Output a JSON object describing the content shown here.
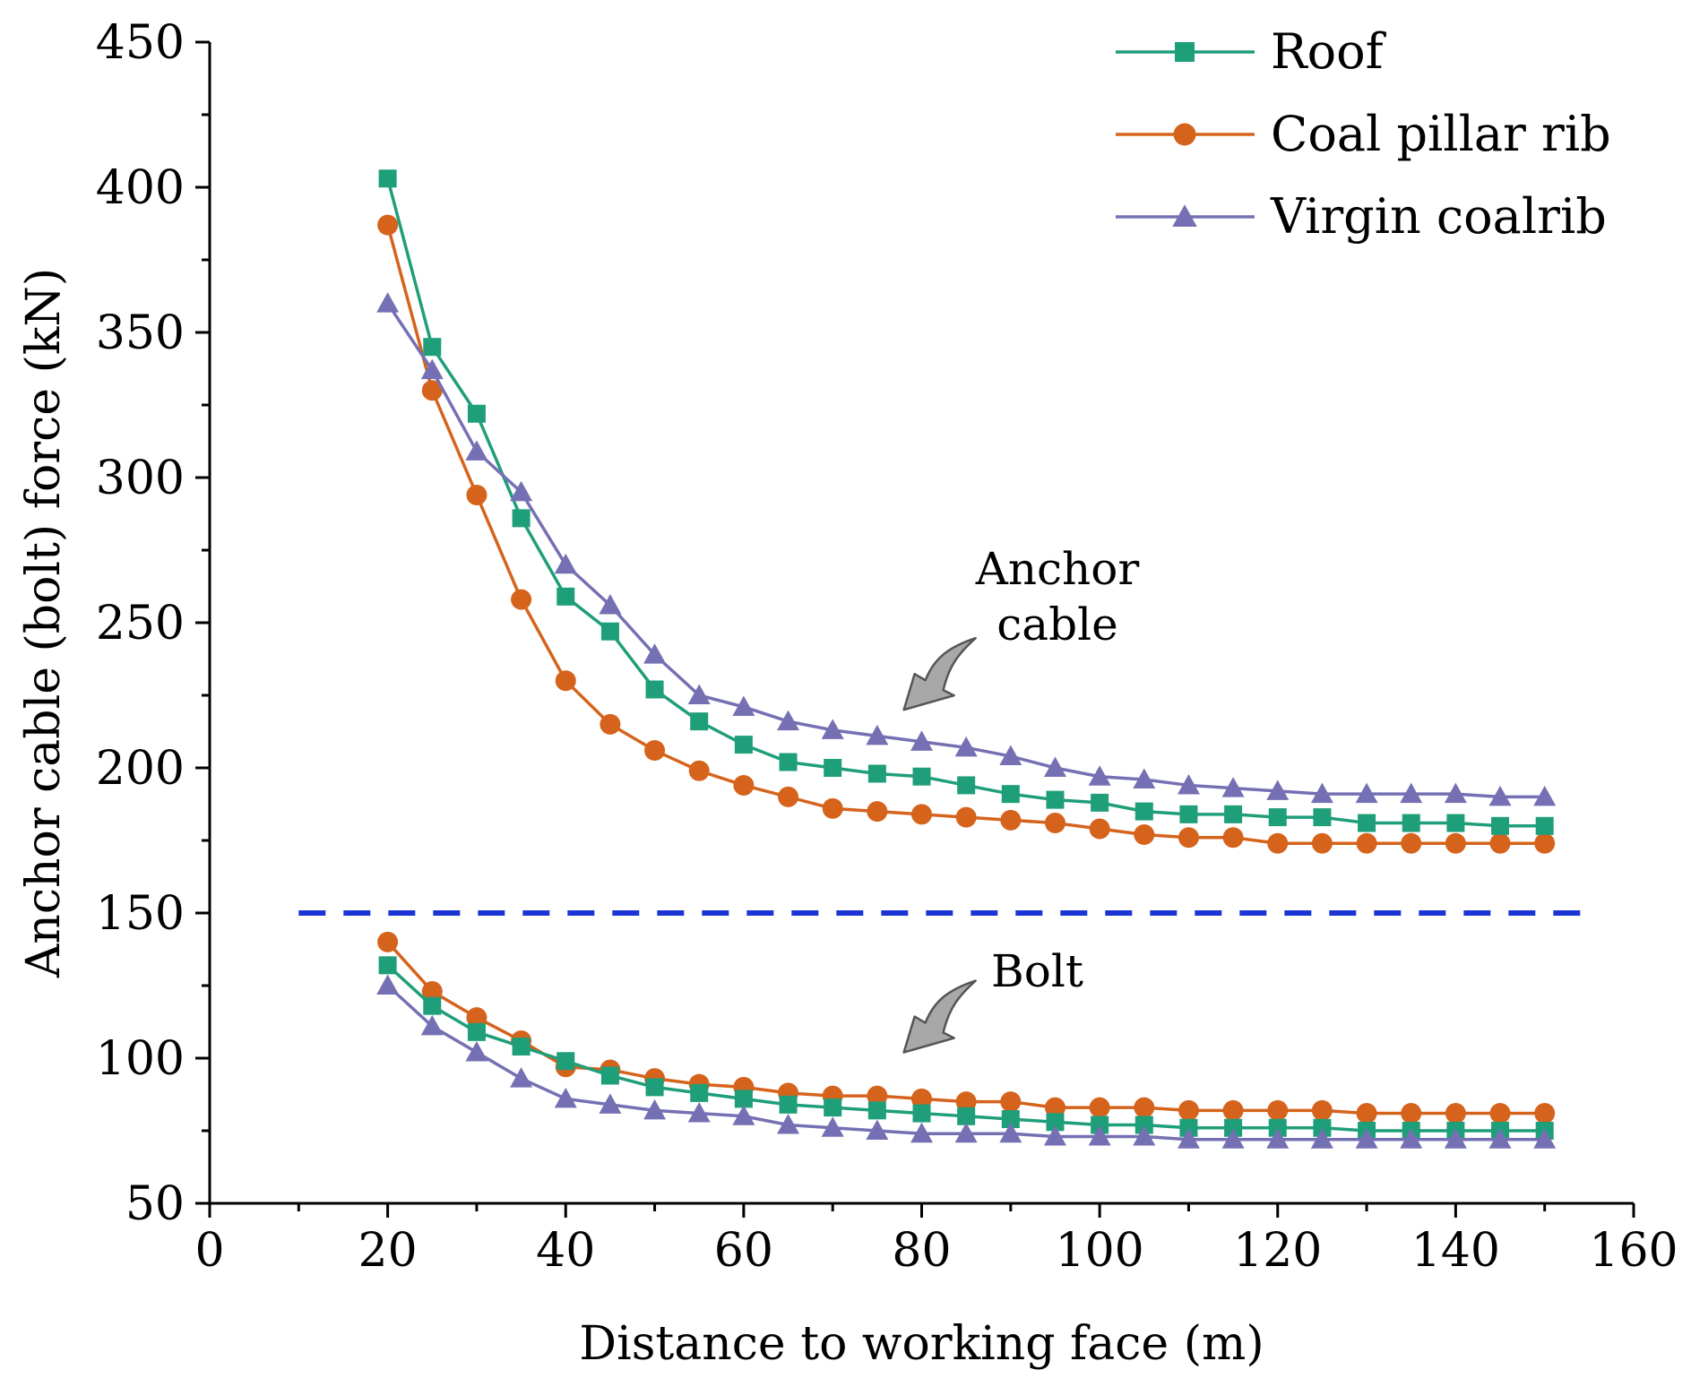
{
  "chart_data": {
    "type": "line",
    "title": "",
    "xlabel": "Distance to working face (m)",
    "ylabel": "Anchor cable (bolt) force (kN)",
    "xlim": [
      0,
      160
    ],
    "ylim": [
      50,
      450
    ],
    "xticks": [
      0,
      20,
      40,
      60,
      80,
      100,
      120,
      140,
      160
    ],
    "yticks": [
      50,
      100,
      150,
      200,
      250,
      300,
      350,
      400,
      450
    ],
    "x": [
      20,
      25,
      30,
      35,
      40,
      45,
      50,
      55,
      60,
      65,
      70,
      75,
      80,
      85,
      90,
      95,
      100,
      105,
      110,
      115,
      120,
      125,
      130,
      135,
      140,
      145,
      150
    ],
    "legend": {
      "position": "top-right"
    },
    "series": [
      {
        "name": "Roof",
        "group": "Anchor cable",
        "marker": "square",
        "color": "#1f9e7a",
        "values": [
          403,
          345,
          322,
          286,
          259,
          247,
          227,
          216,
          208,
          202,
          200,
          198,
          197,
          194,
          191,
          189,
          188,
          185,
          184,
          184,
          183,
          183,
          181,
          181,
          181,
          180,
          180
        ]
      },
      {
        "name": "Coal pillar rib",
        "group": "Anchor cable",
        "marker": "circle",
        "color": "#d5631c",
        "values": [
          387,
          330,
          294,
          258,
          230,
          215,
          206,
          199,
          194,
          190,
          186,
          185,
          184,
          183,
          182,
          181,
          179,
          177,
          176,
          176,
          174,
          174,
          174,
          174,
          174,
          174,
          174
        ]
      },
      {
        "name": "Virgin coalrib",
        "group": "Anchor cable",
        "marker": "triangle",
        "color": "#7570b3",
        "values": [
          360,
          337,
          309,
          295,
          270,
          256,
          239,
          225,
          221,
          216,
          213,
          211,
          209,
          207,
          204,
          200,
          197,
          196,
          194,
          193,
          192,
          191,
          191,
          191,
          191,
          190,
          190
        ]
      },
      {
        "name": "Roof",
        "group": "Bolt",
        "marker": "square",
        "color": "#1f9e7a",
        "values": [
          132,
          118,
          109,
          104,
          99,
          94,
          90,
          88,
          86,
          84,
          83,
          82,
          81,
          80,
          79,
          78,
          77,
          77,
          76,
          76,
          76,
          76,
          75,
          75,
          75,
          75,
          75
        ]
      },
      {
        "name": "Coal pillar rib",
        "group": "Bolt",
        "marker": "circle",
        "color": "#d5631c",
        "values": [
          140,
          123,
          114,
          106,
          97,
          96,
          93,
          91,
          90,
          88,
          87,
          87,
          86,
          85,
          85,
          83,
          83,
          83,
          82,
          82,
          82,
          82,
          81,
          81,
          81,
          81,
          81
        ]
      },
      {
        "name": "Virgin coalrib",
        "group": "Bolt",
        "marker": "triangle",
        "color": "#7570b3",
        "values": [
          125,
          111,
          102,
          93,
          86,
          84,
          82,
          81,
          80,
          77,
          76,
          75,
          74,
          74,
          74,
          73,
          73,
          73,
          72,
          72,
          72,
          72,
          72,
          72,
          72,
          72,
          72
        ]
      }
    ],
    "reference_line": {
      "y": 150,
      "x_range": [
        10,
        154
      ],
      "style": "dashed",
      "color": "#1a35d4"
    },
    "annotations": [
      {
        "id": "anchor",
        "lines": [
          "Anchor",
          "cable"
        ],
        "arrow_target": [
          78,
          220
        ]
      },
      {
        "id": "bolt",
        "lines": [
          "Bolt"
        ],
        "arrow_target": [
          78,
          102
        ]
      }
    ]
  }
}
